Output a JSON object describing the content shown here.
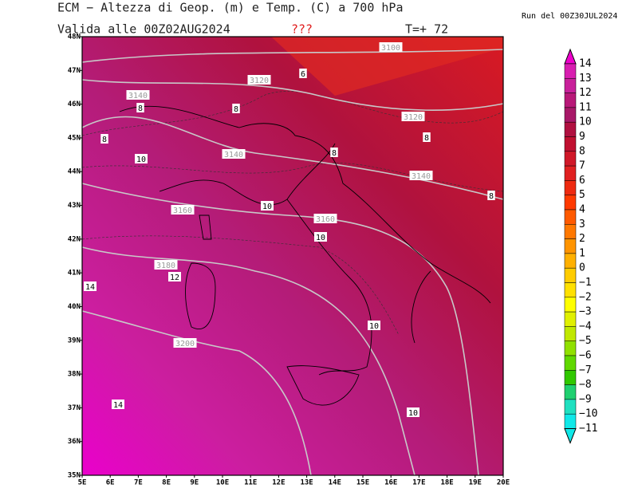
{
  "header": {
    "title": "ECM − Altezza di Geop. (m) e Temp. (C) a 700 hPa",
    "valid": "Valida alle 00Z02AUG2024",
    "flag": "???",
    "step": "T=+  72",
    "run": "Run del 00Z30JUL2024"
  },
  "map": {
    "lat_labels": [
      "48N",
      "47N",
      "46N",
      "45N",
      "44N",
      "43N",
      "42N",
      "41N",
      "40N",
      "39N",
      "38N",
      "37N",
      "36N",
      "35N"
    ],
    "lon_labels": [
      "5E",
      "6E",
      "7E",
      "8E",
      "9E",
      "10E",
      "11E",
      "12E",
      "13E",
      "14E",
      "15E",
      "16E",
      "17E",
      "18E",
      "19E",
      "20E"
    ],
    "height_labels": [
      "3100",
      "3120",
      "3140",
      "3120",
      "3140",
      "3140",
      "3160",
      "3160",
      "3180",
      "3200"
    ],
    "temp_labels": [
      "6",
      "8",
      "8",
      "8",
      "8",
      "8",
      "10",
      "8",
      "10",
      "10",
      "14",
      "12",
      "10",
      "14",
      "10"
    ]
  },
  "colorbar": {
    "labels": [
      "14",
      "13",
      "12",
      "11",
      "10",
      "9",
      "8",
      "7",
      "6",
      "5",
      "4",
      "3",
      "2",
      "1",
      "0",
      "−1",
      "−2",
      "−3",
      "−4",
      "−5",
      "−6",
      "−7",
      "−8",
      "−9",
      "−10",
      "−11"
    ],
    "colors": [
      "#ee00cc",
      "#d81eb0",
      "#c8209a",
      "#b81878",
      "#a81868",
      "#b01040",
      "#c01030",
      "#d01828",
      "#e02020",
      "#ee2a10",
      "#ff3a00",
      "#ff5a00",
      "#ff7800",
      "#ff9400",
      "#ffb000",
      "#ffcc00",
      "#ffe000",
      "#ffff00",
      "#e0f000",
      "#c0e800",
      "#90e000",
      "#60d800",
      "#30c800",
      "#20d070",
      "#20e0c0",
      "#10e8e8"
    ]
  }
}
